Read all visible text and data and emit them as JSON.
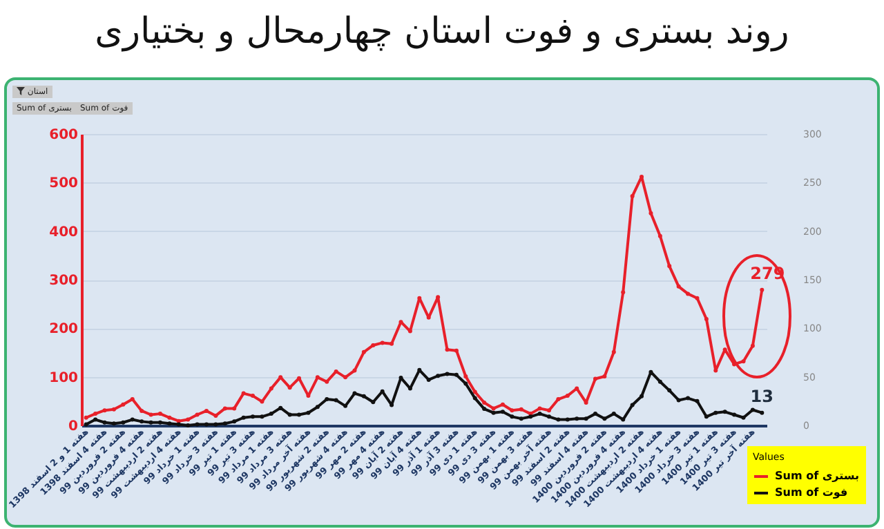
{
  "chart_data": {
    "type": "line",
    "title": "روند بستری و فوت استان چهارمحال و بختیاری",
    "legend_title": "Values",
    "legend": "bottom right",
    "marker": "circle",
    "grid": "y",
    "annotations": [
      "استان",
      "Sum of بستری",
      "Sum of فوت"
    ],
    "categories": [
      "هفته 1 و 2 اسفند 1398",
      null,
      "هفته 4 اسفند 1398",
      null,
      "هفته 2 فروردین 99",
      null,
      "هفته 4 فروردین 99",
      null,
      "هفته 2 اردیبهشت 99",
      null,
      "هفته 4 اردیبهشت 99",
      null,
      "هفته 1 خرداد 99",
      null,
      "هفته 3 خرداد 99",
      null,
      "هفته 1 تیر 99",
      null,
      "هفته 3 تیر 99",
      null,
      "هفته 1 مرداد 99",
      null,
      "هفته 3 مرداد 99",
      null,
      "هفته آخر مرداد 99",
      null,
      "هفته 2 شهریور 99",
      null,
      "هفته 4 شهریور 99",
      null,
      "هفته 2 مهر 99",
      null,
      "هفته 4 مهر 99",
      null,
      "هفته 2 آبان 99",
      null,
      "هفته 4 آبان 99",
      null,
      "هفته 1 آذر 99",
      null,
      "هفته 3 آذر 99",
      null,
      "هفته 1 دی 99",
      null,
      "هفته 3 دی 99",
      null,
      "هفته 1 بهمن 99",
      null,
      "هفته 3 بهمن 99",
      null,
      "هفته آخر بهمن 99",
      null,
      "هفته 2 اسفند 99",
      null,
      "هفته 4 اسفند 99",
      null,
      "هفته 2 فروردین 1400",
      null,
      "هفته 4 فروردین 1400",
      null,
      "هفته 2 اردیبهشت 1400",
      null,
      "هفته 4 اردیبهشت 1400",
      null,
      "هفته 1 خرداد 1400",
      null,
      "هفته 3 خرداد 1400",
      null,
      "هفته 1 تیر 1400",
      null,
      "هفته 3 تیر 1400",
      null,
      "هفته آخر تیر 1400",
      null
    ],
    "ylim": [
      0,
      600
    ],
    "yticks": [
      0,
      100,
      200,
      300,
      400,
      500,
      600
    ],
    "y2lim": [
      0,
      300
    ],
    "y2ticks": [
      0,
      50,
      100,
      150,
      200,
      250,
      300
    ],
    "series": [
      {
        "name": "Sum of بستری",
        "color": "#e8202a",
        "values": [
          16,
          24,
          31,
          33,
          43,
          54,
          30,
          22,
          24,
          16,
          9,
          12,
          22,
          30,
          20,
          35,
          35,
          66,
          61,
          49,
          76,
          99,
          78,
          97,
          61,
          99,
          90,
          111,
          99,
          113,
          151,
          165,
          170,
          168,
          213,
          194,
          262,
          222,
          264,
          156,
          154,
          101,
          69,
          47,
          35,
          43,
          31,
          33,
          24,
          35,
          31,
          54,
          61,
          76,
          47,
          96,
          101,
          151,
          274,
          472,
          512,
          437,
          390,
          328,
          286,
          271,
          262,
          219,
          113,
          156,
          126,
          132,
          164,
          279
        ],
        "value_labels": [
          null,
          null,
          null,
          null,
          null,
          null,
          null,
          null,
          null,
          null,
          null,
          null,
          null,
          null,
          null,
          null,
          null,
          null,
          null,
          null,
          null,
          null,
          null,
          null,
          null,
          null,
          null,
          null,
          null,
          null,
          null,
          null,
          null,
          null,
          null,
          null,
          null,
          null,
          null,
          null,
          null,
          null,
          null,
          null,
          null,
          null,
          null,
          null,
          null,
          null,
          null,
          null,
          null,
          null,
          null,
          null,
          null,
          null,
          null,
          null,
          null,
          null,
          null,
          null,
          null,
          null,
          null,
          null,
          null,
          null,
          null,
          null,
          null,
          "279"
        ]
      },
      {
        "name": "Sum of فوت",
        "color": "#111111",
        "axis": "y2",
        "values": [
          1,
          6,
          3,
          2,
          3,
          6,
          4,
          3,
          3,
          2,
          1,
          0,
          1,
          1,
          1,
          2,
          4,
          8,
          9,
          9,
          12,
          18,
          11,
          11,
          13,
          19,
          27,
          26,
          20,
          33,
          30,
          24,
          35,
          21,
          49,
          38,
          57,
          47,
          51,
          53,
          52,
          43,
          28,
          17,
          13,
          14,
          9,
          7,
          9,
          12,
          9,
          6,
          6,
          7,
          7,
          12,
          7,
          12,
          6,
          21,
          30,
          55,
          45,
          36,
          26,
          28,
          25,
          9,
          13,
          14,
          11,
          8,
          16,
          13
        ],
        "value_labels": [
          null,
          null,
          null,
          null,
          null,
          null,
          null,
          null,
          null,
          null,
          null,
          null,
          null,
          null,
          null,
          null,
          null,
          null,
          null,
          null,
          null,
          null,
          null,
          null,
          null,
          null,
          null,
          null,
          null,
          null,
          null,
          null,
          null,
          null,
          null,
          null,
          null,
          null,
          null,
          null,
          null,
          null,
          null,
          null,
          null,
          null,
          null,
          null,
          null,
          null,
          null,
          null,
          null,
          null,
          null,
          null,
          null,
          null,
          null,
          null,
          null,
          null,
          null,
          null,
          null,
          null,
          null,
          null,
          null,
          null,
          null,
          null,
          null,
          "13"
        ]
      }
    ]
  }
}
